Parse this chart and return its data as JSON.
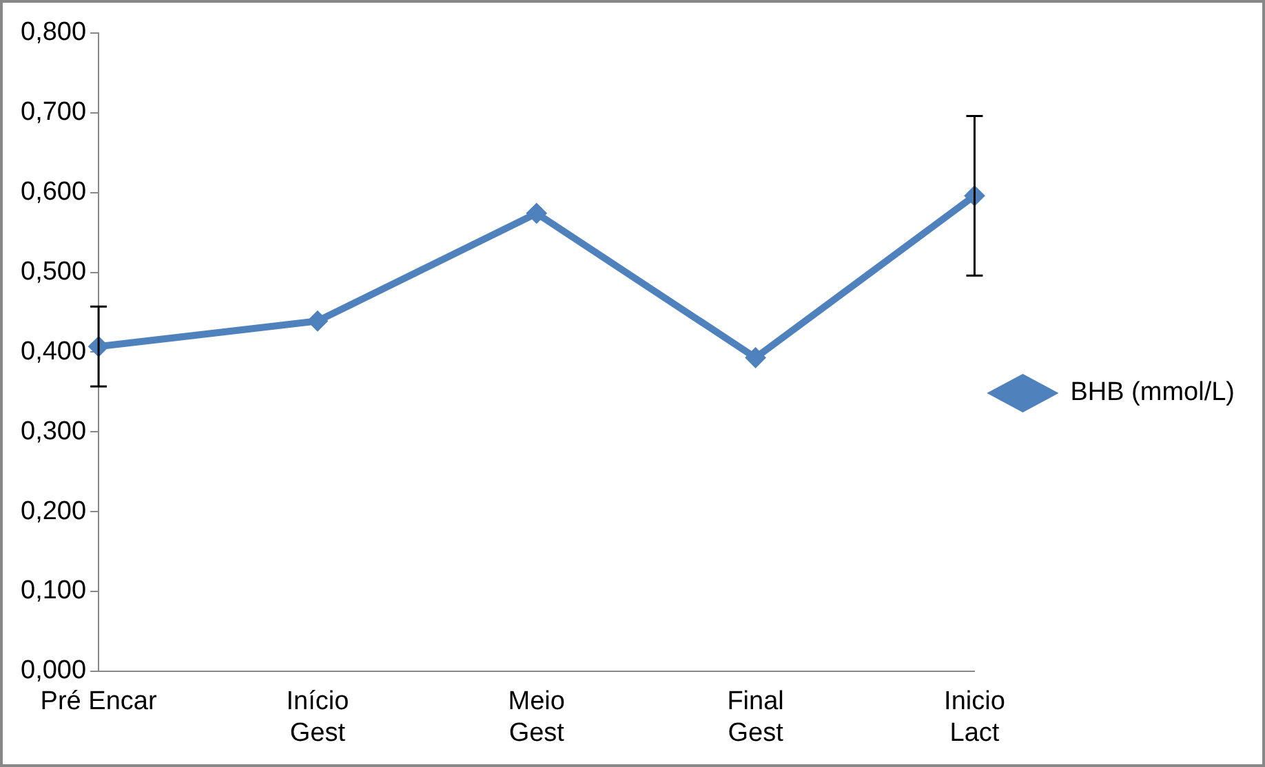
{
  "chart_data": {
    "type": "line",
    "categories": [
      "Pré Encar",
      "Início\nGest",
      "Meio\nGest",
      "Final\nGest",
      "Inicio\nLact"
    ],
    "series": [
      {
        "name": "BHB (mmol/L)",
        "color": "#4f81bd",
        "values": [
          0.407,
          0.439,
          0.574,
          0.393,
          0.596
        ],
        "errors": [
          0.05,
          null,
          null,
          null,
          0.1
        ]
      }
    ],
    "ylim": [
      0,
      0.8
    ],
    "yticks": [
      {
        "value": 0,
        "label": "0,000"
      },
      {
        "value": 0.1,
        "label": "0,100"
      },
      {
        "value": 0.2,
        "label": "0,200"
      },
      {
        "value": 0.3,
        "label": "0,300"
      },
      {
        "value": 0.4,
        "label": "0,400"
      },
      {
        "value": 0.5,
        "label": "0,500"
      },
      {
        "value": 0.6,
        "label": "0,600"
      },
      {
        "value": 0.7,
        "label": "0,700"
      },
      {
        "value": 0.8,
        "label": "0,800"
      }
    ],
    "grid": false,
    "legend": "right",
    "marker": "diamond",
    "line_style": "solid"
  }
}
